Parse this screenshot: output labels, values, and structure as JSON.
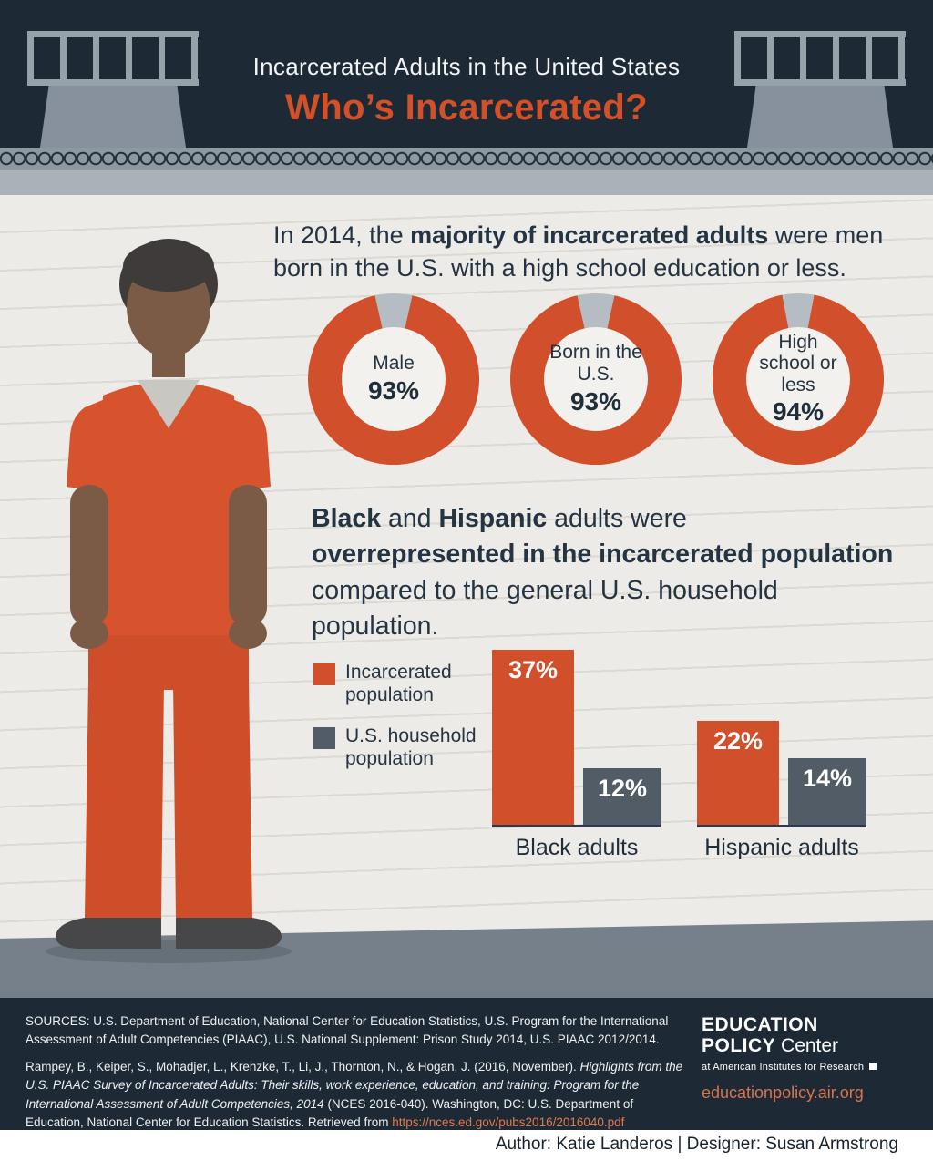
{
  "header": {
    "title": "Incarcerated Adults in the United States",
    "subtitle": "Who’s Incarcerated?"
  },
  "intro": {
    "t1": "In 2014, the ",
    "b1": "majority of incarcerated adults",
    "t2": " were men born in the U.S. with a high school education or less."
  },
  "overrep": {
    "b1": "Black",
    "t1": " and ",
    "b2": "Hispanic",
    "t2": " adults were ",
    "b3": "overrepresented in the incarcerated population",
    "t3": " compared to the general U.S. household population."
  },
  "chart_data": [
    {
      "type": "pie",
      "style": "donut",
      "donuts": [
        {
          "label": "Male",
          "value": 93,
          "display": "93%"
        },
        {
          "label": "Born in the U.S.",
          "value": 93,
          "display": "93%"
        },
        {
          "label": "High school or less",
          "value": 94,
          "display": "94%"
        }
      ]
    },
    {
      "type": "bar",
      "categories": [
        "Black adults",
        "Hispanic adults"
      ],
      "series": [
        {
          "name": "Incarcerated population",
          "values": [
            37,
            22
          ],
          "displays": [
            "37%",
            "22%"
          ],
          "color": "#d14f2b"
        },
        {
          "name": "U.S. household population",
          "values": [
            12,
            14
          ],
          "displays": [
            "12%",
            "14%"
          ],
          "color": "#515c66"
        }
      ],
      "unit": "%",
      "legend_position": "left",
      "ylim": [
        0,
        40
      ]
    }
  ],
  "colors": {
    "orange": "#d14f2b",
    "slate": "#515c66",
    "navy": "#1d2a36",
    "donut_gap": "#b5bcc2",
    "link_orange": "#e0784f"
  },
  "footer": {
    "sources": "SOURCES: U.S. Department of Education, National Center for Education Statistics, U.S. Program for the International Assessment of Adult Competencies (PIAAC), U.S. National Supplement: Prison Study 2014, U.S. PIAAC 2012/2014.",
    "citation_t1": "Rampey, B., Keiper, S., Mohadjer, L., Krenzke, T., Li, J., Thornton, N., & Hogan, J. (2016, November). ",
    "citation_i1": "Highlights from the U.S. PIAAC Survey of Incarcerated Adults: Their skills, work experience, education, and training: Program for the International Assessment of Adult Competencies, 2014",
    "citation_t2": " (NCES 2016-040). Washington, DC: U.S. Department of Education, National Center for Education Statistics. Retrieved from ",
    "citation_link": "https://nces.ed.gov/pubs2016/2016040.pdf",
    "logo_line1": "EDUCATION",
    "logo_line2_bold": "POLICY",
    "logo_line2_rest": " Center",
    "logo_tagline": "at American Institutes for Research",
    "logo_url": "educationpolicy.air.org"
  },
  "credits": {
    "text": "Author: Katie Landeros | Designer: Susan Armstrong"
  }
}
